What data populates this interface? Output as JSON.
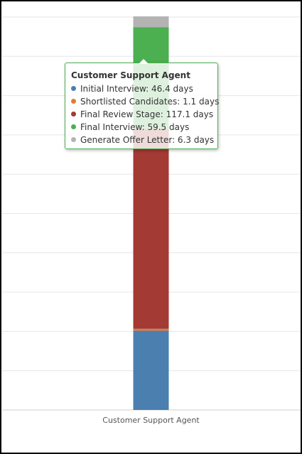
{
  "chart_data": {
    "type": "bar",
    "stacked": true,
    "categories": [
      "Customer Support Agent"
    ],
    "series": [
      {
        "name": "Initial Interview",
        "values": [
          46.4
        ],
        "color": "#4a7fb0"
      },
      {
        "name": "Shortlisted Candidates",
        "values": [
          1.1
        ],
        "color": "#e07b39"
      },
      {
        "name": "Final Review Stage",
        "values": [
          117.1
        ],
        "color": "#a33a33"
      },
      {
        "name": "Final Interview",
        "values": [
          59.5
        ],
        "color": "#4caf50"
      },
      {
        "name": "Generate Offer Letter",
        "values": [
          6.3
        ],
        "color": "#b3b3b3"
      }
    ],
    "xlabel": "",
    "ylabel": "",
    "ylim": [
      0,
      230
    ],
    "grid": true,
    "tooltip": {
      "title": "Customer Support Agent",
      "rows": [
        {
          "label": "Initial Interview: 46.4 days",
          "color": "#4a7fb0"
        },
        {
          "label": "Shortlisted Candidates: 1.1 days",
          "color": "#e07b39"
        },
        {
          "label": "Final Review Stage: 117.1 days",
          "color": "#a33a33"
        },
        {
          "label": "Final Interview: 59.5 days",
          "color": "#4caf50"
        },
        {
          "label": "Generate Offer Letter: 6.3 days",
          "color": "#b3b3b3"
        }
      ]
    }
  }
}
